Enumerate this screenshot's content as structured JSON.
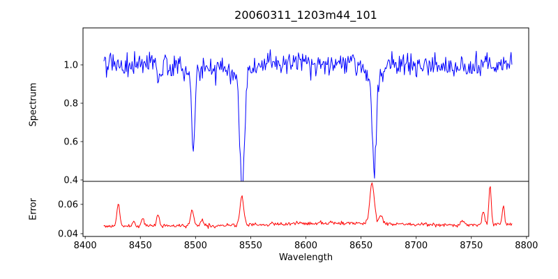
{
  "figure": {
    "background": "#ffffff",
    "frame_color": "#000000"
  },
  "chart_data": {
    "type": "line",
    "title": "20060311_1203m44_101",
    "xlabel": "Wavelength",
    "legend": "none",
    "grid": false,
    "xlim": [
      8398,
      8802
    ],
    "xticks": [
      8400,
      8450,
      8500,
      8550,
      8600,
      8650,
      8700,
      8750,
      8800
    ],
    "xtick_labels": [
      "8400",
      "8450",
      "8500",
      "8550",
      "8600",
      "8650",
      "8700",
      "8750",
      "8800"
    ],
    "x_sampling": {
      "start": 8417,
      "end": 8787,
      "step": 0.75
    },
    "seed": 20060311,
    "panels": [
      {
        "name": "spectrum",
        "ylabel": "Spectrum",
        "line_color": "#0000ff",
        "ylim": [
          0.3927,
          1.1927
        ],
        "yticks": [
          0.4,
          0.6,
          0.8,
          1.0
        ],
        "ytick_labels": [
          "0.4",
          "0.6",
          "0.8",
          "1.0"
        ],
        "continuum": 1.0,
        "noise_sigma": 0.029,
        "absorption_lines": [
          {
            "center": 8498.0,
            "depth": 0.4,
            "sigma": 1.3
          },
          {
            "center": 8498.0,
            "depth": 0.05,
            "sigma": 5.0
          },
          {
            "center": 8542.1,
            "depth": 0.58,
            "sigma": 2.0
          },
          {
            "center": 8542.1,
            "depth": 0.08,
            "sigma": 7.0
          },
          {
            "center": 8662.1,
            "depth": 0.5,
            "sigma": 1.8
          },
          {
            "center": 8662.1,
            "depth": 0.07,
            "sigma": 6.0
          },
          {
            "center": 8467.0,
            "depth": 0.06,
            "sigma": 1.5
          },
          {
            "center": 8514.0,
            "depth": 0.05,
            "sigma": 1.5
          }
        ]
      },
      {
        "name": "error",
        "ylabel": "Error",
        "line_color": "#ff0000",
        "ylim": [
          0.0381,
          0.0757
        ],
        "yticks": [
          0.04,
          0.06
        ],
        "ytick_labels": [
          "0.04",
          "0.06"
        ],
        "baseline": 0.0451,
        "noise_sigma": 0.00062,
        "broad_humps": [
          {
            "center": 8630,
            "amplitude": 0.0022,
            "sigma": 60
          },
          {
            "center": 8785,
            "amplitude": 0.0012,
            "sigma": 25
          }
        ],
        "peaks": [
          {
            "center": 8430,
            "amplitude": 0.0155,
            "sigma": 1.3
          },
          {
            "center": 8444,
            "amplitude": 0.004,
            "sigma": 1.0
          },
          {
            "center": 8452,
            "amplitude": 0.0055,
            "sigma": 1.2
          },
          {
            "center": 8466,
            "amplitude": 0.0075,
            "sigma": 1.4
          },
          {
            "center": 8497,
            "amplitude": 0.0105,
            "sigma": 1.6
          },
          {
            "center": 8506,
            "amplitude": 0.0045,
            "sigma": 1.0
          },
          {
            "center": 8542,
            "amplitude": 0.0195,
            "sigma": 1.7
          },
          {
            "center": 8660,
            "amplitude": 0.0275,
            "sigma": 2.0
          },
          {
            "center": 8668,
            "amplitude": 0.006,
            "sigma": 1.5
          },
          {
            "center": 8742,
            "amplitude": 0.0035,
            "sigma": 1.5
          },
          {
            "center": 8761,
            "amplitude": 0.009,
            "sigma": 1.3
          },
          {
            "center": 8767,
            "amplitude": 0.028,
            "sigma": 1.0
          },
          {
            "center": 8779,
            "amplitude": 0.013,
            "sigma": 1.0
          }
        ]
      }
    ]
  }
}
